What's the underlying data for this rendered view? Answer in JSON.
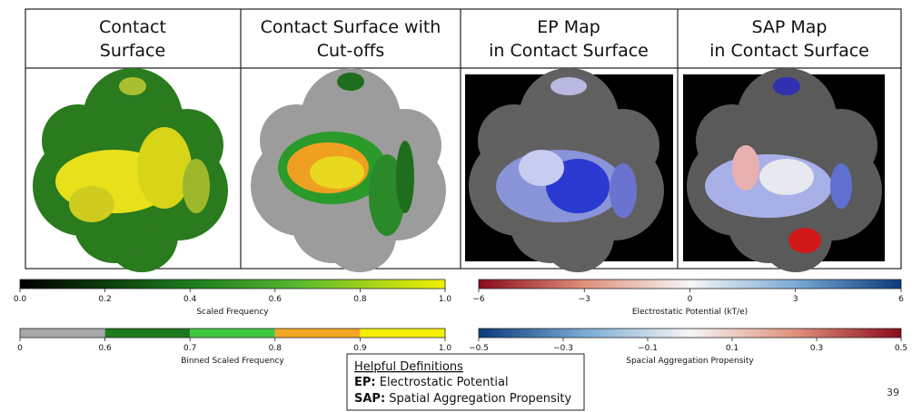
{
  "panels": [
    {
      "title": [
        "Contact",
        "Surface"
      ]
    },
    {
      "title": [
        "Contact Surface with",
        "Cut-offs"
      ]
    },
    {
      "title": [
        "EP Map",
        "in Contact Surface"
      ]
    },
    {
      "title": [
        "SAP Map",
        "in Contact Surface"
      ]
    }
  ],
  "colorbars": [
    {
      "label": "Scaled Frequency",
      "ticks": [
        "0.0",
        "0.2",
        "0.4",
        "0.6",
        "0.8",
        "1.0"
      ]
    },
    {
      "label": "Electrostatic Potential (kT/e)",
      "ticks": [
        "−6",
        "−3",
        "0",
        "3",
        "6"
      ]
    },
    {
      "label": "Binned Scaled Frequency",
      "ticks": [
        "0",
        "0.6",
        "0.7",
        "0.8",
        "0.9",
        "1.0"
      ]
    },
    {
      "label": "Spacial Aggregation Propensity",
      "ticks": [
        "−0.5",
        "−0.3",
        "−0.1",
        "0.1",
        "0.3",
        "0.5"
      ]
    }
  ],
  "definitions": {
    "title": "Helpful Definitions",
    "items": [
      {
        "term": "EP:",
        "text": "Electrostatic Potential"
      },
      {
        "term": "SAP:",
        "text": "Spatial Aggregation Propensity"
      }
    ]
  },
  "page_number": "39"
}
